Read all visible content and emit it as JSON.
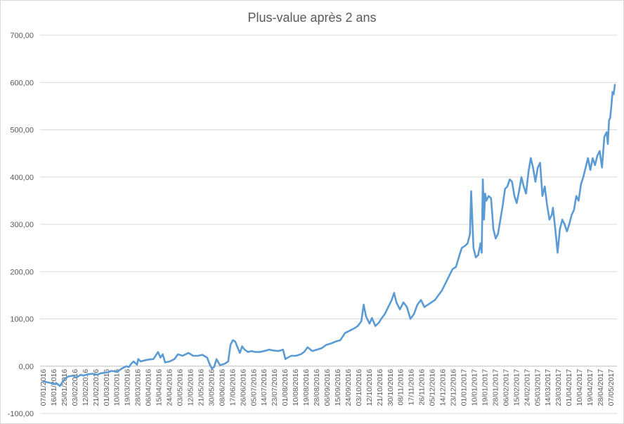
{
  "chart_data": {
    "type": "line",
    "title": "Plus-value après 2 ans",
    "xlabel": "",
    "ylabel": "",
    "ylim": [
      -100,
      700
    ],
    "y_ticks": [
      -100,
      0,
      100,
      200,
      300,
      400,
      500,
      600,
      700
    ],
    "y_tick_labels": [
      "-100,00",
      "0,00",
      "100,00",
      "200,00",
      "300,00",
      "400,00",
      "500,00",
      "600,00",
      "700,00"
    ],
    "grid": true,
    "legend": "none",
    "x_tick_labels": [
      "07/01/2016",
      "16/01/2016",
      "25/01/2016",
      "03/02/2016",
      "12/02/2016",
      "21/02/2016",
      "01/03/2016",
      "10/03/2016",
      "19/03/2016",
      "28/03/2016",
      "06/04/2016",
      "15/04/2016",
      "24/04/2016",
      "03/05/2016",
      "12/05/2016",
      "21/05/2016",
      "30/05/2016",
      "08/06/2016",
      "17/06/2016",
      "26/06/2016",
      "05/07/2016",
      "14/07/2016",
      "23/07/2016",
      "01/08/2016",
      "10/08/2016",
      "19/08/2016",
      "28/08/2016",
      "06/09/2016",
      "15/09/2016",
      "24/09/2016",
      "03/10/2016",
      "12/10/2016",
      "21/10/2016",
      "30/10/2016",
      "08/11/2016",
      "17/11/2016",
      "26/11/2016",
      "05/12/2016",
      "14/12/2016",
      "23/12/2016",
      "01/01/2017",
      "10/01/2017",
      "19/01/2017",
      "28/01/2017",
      "06/02/2017",
      "15/02/2017",
      "24/02/2017",
      "05/03/2017",
      "14/03/2017",
      "23/03/2017",
      "01/04/2017",
      "10/04/2017",
      "19/04/2017",
      "28/04/2017",
      "07/05/2017"
    ],
    "series": [
      {
        "color": "#5b9bd5",
        "x": [
          "07/01/2016",
          "10/01/2016",
          "14/01/2016",
          "16/01/2016",
          "18/01/2016",
          "21/01/2016",
          "24/01/2016",
          "26/01/2016",
          "28/01/2016",
          "01/02/2016",
          "04/02/2016",
          "08/02/2016",
          "10/02/2016",
          "14/02/2016",
          "18/02/2016",
          "22/02/2016",
          "25/02/2016",
          "28/02/2016",
          "02/03/2016",
          "05/03/2016",
          "10/03/2016",
          "14/03/2016",
          "18/03/2016",
          "20/03/2016",
          "22/03/2016",
          "24/03/2016",
          "27/03/2016",
          "28/03/2016",
          "30/03/2016",
          "02/04/2016",
          "06/04/2016",
          "10/04/2016",
          "14/04/2016",
          "16/04/2016",
          "18/04/2016",
          "20/04/2016",
          "24/04/2016",
          "28/04/2016",
          "01/05/2016",
          "05/05/2016",
          "10/05/2016",
          "14/05/2016",
          "18/05/2016",
          "22/05/2016",
          "26/05/2016",
          "28/05/2016",
          "30/05/2016",
          "01/06/2016",
          "03/06/2016",
          "06/06/2016",
          "10/06/2016",
          "13/06/2016",
          "15/06/2016",
          "17/06/2016",
          "19/06/2016",
          "21/06/2016",
          "23/06/2016",
          "25/06/2016",
          "27/06/2016",
          "30/06/2016",
          "03/07/2016",
          "06/07/2016",
          "10/07/2016",
          "14/07/2016",
          "18/07/2016",
          "22/07/2016",
          "26/07/2016",
          "30/07/2016",
          "01/08/2016",
          "03/08/2016",
          "06/08/2016",
          "10/08/2016",
          "14/08/2016",
          "17/08/2016",
          "20/08/2016",
          "24/08/2016",
          "28/08/2016",
          "01/09/2016",
          "05/09/2016",
          "09/09/2016",
          "13/09/2016",
          "17/09/2016",
          "21/09/2016",
          "25/09/2016",
          "29/09/2016",
          "02/10/2016",
          "05/10/2016",
          "07/10/2016",
          "09/10/2016",
          "12/10/2016",
          "14/10/2016",
          "17/10/2016",
          "20/10/2016",
          "22/10/2016",
          "25/10/2016",
          "28/10/2016",
          "31/10/2016",
          "02/11/2016",
          "04/11/2016",
          "07/11/2016",
          "10/11/2016",
          "13/11/2016",
          "16/11/2016",
          "19/11/2016",
          "22/11/2016",
          "25/11/2016",
          "28/11/2016",
          "01/12/2016",
          "04/12/2016",
          "07/12/2016",
          "10/12/2016",
          "13/12/2016",
          "16/12/2016",
          "19/12/2016",
          "22/12/2016",
          "25/12/2016",
          "28/12/2016",
          "30/12/2016",
          "02/01/2017",
          "04/01/2017",
          "06/01/2017",
          "07/01/2017",
          "09/01/2017",
          "11/01/2017",
          "13/01/2017",
          "15/01/2017",
          "16/01/2017",
          "17/01/2017",
          "18/01/2017",
          "19/01/2017",
          "20/01/2017",
          "22/01/2017",
          "24/01/2017",
          "26/01/2017",
          "28/01/2017",
          "30/01/2017",
          "01/02/2017",
          "03/02/2017",
          "05/02/2017",
          "07/02/2017",
          "09/02/2017",
          "11/02/2017",
          "13/02/2017",
          "15/02/2017",
          "17/02/2017",
          "19/02/2017",
          "21/02/2017",
          "23/02/2017",
          "25/02/2017",
          "27/02/2017",
          "01/03/2017",
          "03/03/2017",
          "05/03/2017",
          "07/03/2017",
          "09/03/2017",
          "11/03/2017",
          "13/03/2017",
          "15/03/2017",
          "17/03/2017",
          "18/03/2017",
          "20/03/2017",
          "22/03/2017",
          "24/03/2017",
          "26/03/2017",
          "28/03/2017",
          "30/03/2017",
          "01/04/2017",
          "03/04/2017",
          "05/04/2017",
          "07/04/2017",
          "09/04/2017",
          "11/04/2017",
          "13/04/2017",
          "15/04/2017",
          "17/04/2017",
          "19/04/2017",
          "21/04/2017",
          "23/04/2017",
          "25/04/2017",
          "27/04/2017",
          "29/04/2017",
          "01/05/2017",
          "02/05/2017",
          "03/05/2017",
          "04/05/2017",
          "05/05/2017",
          "06/05/2017",
          "07/05/2017",
          "08/05/2017",
          "09/05/2017",
          "10/05/2017"
        ],
        "values": [
          -32,
          -34,
          -36,
          -38,
          -36,
          -42,
          -30,
          -25,
          -22,
          -20,
          -24,
          -18,
          -20,
          -17,
          -16,
          -18,
          -15,
          -14,
          -13,
          -10,
          -12,
          -5,
          0,
          -2,
          5,
          10,
          3,
          15,
          10,
          12,
          14,
          15,
          30,
          18,
          25,
          8,
          10,
          15,
          25,
          22,
          28,
          22,
          22,
          24,
          18,
          5,
          -5,
          -2,
          15,
          2,
          5,
          10,
          45,
          55,
          52,
          40,
          28,
          42,
          35,
          30,
          32,
          30,
          30,
          32,
          35,
          33,
          32,
          35,
          15,
          18,
          22,
          22,
          25,
          30,
          40,
          32,
          35,
          38,
          45,
          48,
          52,
          55,
          70,
          75,
          80,
          85,
          95,
          130,
          105,
          90,
          102,
          85,
          92,
          100,
          110,
          125,
          140,
          155,
          135,
          120,
          135,
          125,
          100,
          110,
          130,
          140,
          125,
          130,
          135,
          140,
          150,
          160,
          175,
          190,
          205,
          210,
          235,
          250,
          255,
          260,
          280,
          370,
          250,
          230,
          235,
          260,
          240,
          395,
          310,
          365,
          350,
          360,
          355,
          290,
          270,
          280,
          310,
          340,
          375,
          380,
          395,
          390,
          360,
          345,
          370,
          400,
          380,
          365,
          410,
          440,
          420,
          390,
          420,
          430,
          360,
          380,
          340,
          310,
          320,
          335,
          290,
          240,
          290,
          310,
          300,
          285,
          300,
          320,
          330,
          360,
          350,
          385,
          400,
          420,
          440,
          415,
          440,
          425,
          445,
          455,
          420,
          485,
          490,
          495,
          470,
          520,
          525,
          550,
          580,
          575,
          595
        ]
      }
    ]
  }
}
